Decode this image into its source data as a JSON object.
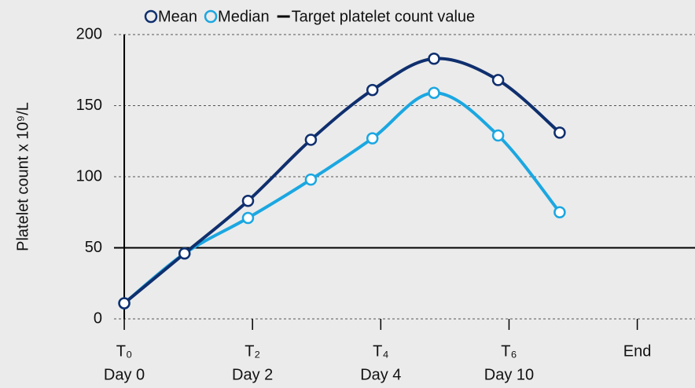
{
  "chart_data": {
    "type": "line",
    "y_label": "Platelet count x 10⁹/L",
    "x": [
      0,
      0.94,
      1.93,
      2.91,
      3.87,
      4.83,
      5.83,
      6.79
    ],
    "series": [
      {
        "name": "Mean",
        "color": "#0f2f6e",
        "values": [
          11,
          46,
          83,
          126,
          161,
          183,
          168,
          131
        ]
      },
      {
        "name": "Median",
        "color": "#1ba7e1",
        "values": [
          11,
          46,
          71,
          98,
          127,
          159,
          129,
          75
        ]
      }
    ],
    "target": {
      "name": "Target platelet count value",
      "value": 50,
      "color": "#000000"
    },
    "xlim": [
      -0.16,
      8.9
    ],
    "xticks": [
      {
        "value": 0,
        "label": "T₀"
      },
      {
        "value": 2,
        "label": "T₂"
      },
      {
        "value": 4,
        "label": "T₄"
      },
      {
        "value": 6,
        "label": "T₆"
      },
      {
        "value": 8,
        "label": "End"
      }
    ],
    "xtick_days": [
      "Day 0",
      "Day 2",
      "Day 4",
      "Day 10",
      null
    ],
    "ylim": [
      0,
      200
    ],
    "yticks": [
      0,
      50,
      100,
      150,
      200
    ],
    "grid": true
  }
}
